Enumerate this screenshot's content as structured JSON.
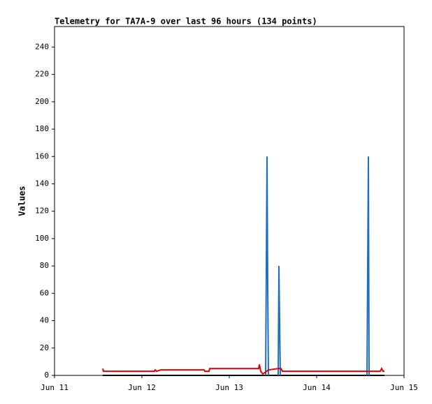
{
  "chart_data": {
    "type": "line",
    "title": "Telemetry for TA7A-9 over last 96 hours (134 points)",
    "ylabel": "Values",
    "xlim": [
      11,
      15
    ],
    "xticks": [
      {
        "value": 11,
        "label": "Jun 11"
      },
      {
        "value": 12,
        "label": "Jun 12"
      },
      {
        "value": 13,
        "label": "Jun 13"
      },
      {
        "value": 14,
        "label": "Jun 14"
      },
      {
        "value": 15,
        "label": "Jun 15"
      }
    ],
    "ylim": [
      0,
      255
    ],
    "yticks": [
      0,
      20,
      40,
      60,
      80,
      100,
      120,
      140,
      160,
      180,
      200,
      220,
      240
    ],
    "series": [
      {
        "color": "#000000",
        "x": [
          11.552,
          14.776
        ],
        "values": [
          0,
          0
        ]
      },
      {
        "color": "#1f6fbf",
        "x": [
          13.416,
          13.424,
          13.432,
          13.44,
          13.448,
          13.5,
          13.56,
          13.568,
          13.576,
          13.584,
          14.0,
          14.576,
          14.584,
          14.592,
          14.6
        ],
        "values": [
          0,
          80,
          160,
          65,
          0,
          null,
          0,
          80,
          40,
          0,
          null,
          0,
          80,
          160,
          0
        ]
      },
      {
        "color": "#e00000",
        "x": [
          11.552,
          11.56,
          12.144,
          12.152,
          12.168,
          12.216,
          12.712,
          12.72,
          12.768,
          12.776,
          13.336,
          13.344,
          13.36,
          13.384,
          13.448,
          13.56,
          13.592,
          13.608,
          14.728,
          14.744,
          14.76,
          14.776
        ],
        "values": [
          5,
          3,
          3,
          4,
          3,
          4,
          4,
          3,
          3,
          5,
          5,
          8,
          3,
          1,
          4,
          5,
          5,
          3,
          3,
          5,
          3,
          3
        ]
      }
    ]
  }
}
